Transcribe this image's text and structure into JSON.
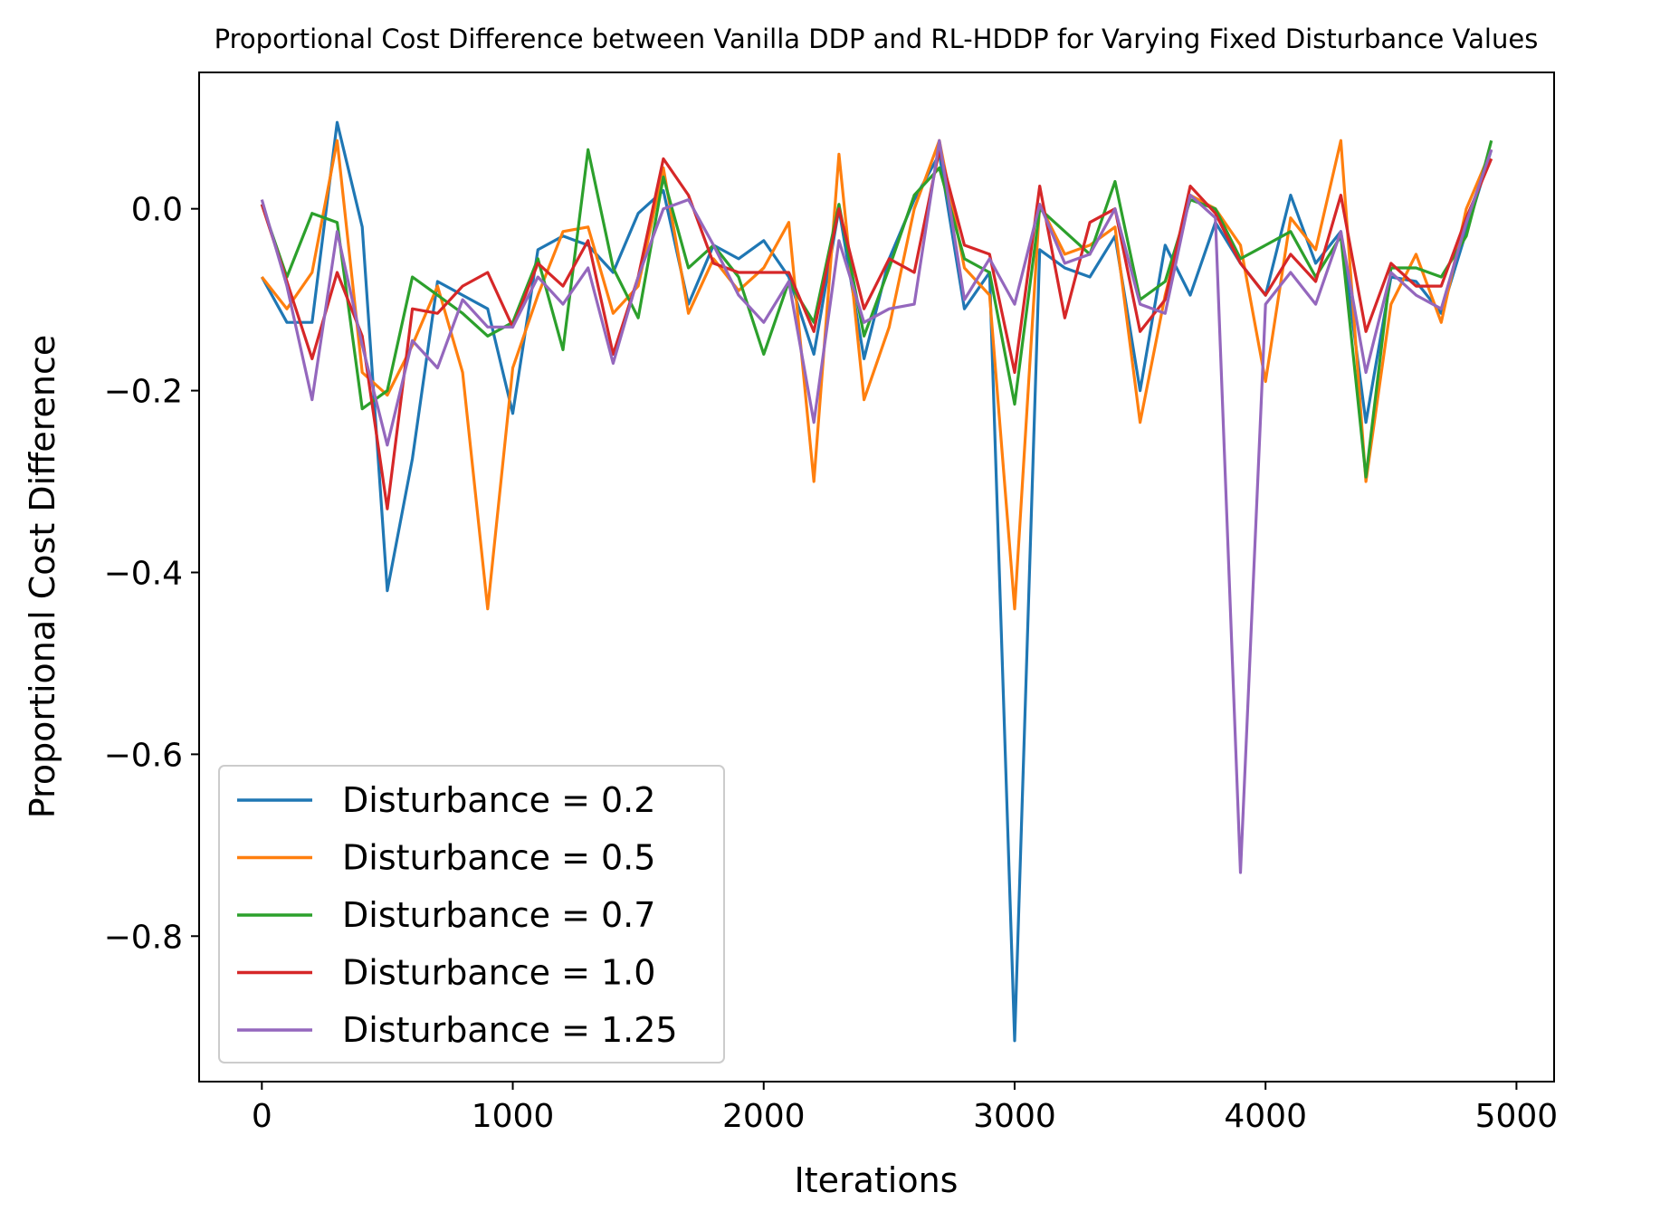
{
  "chart_data": {
    "type": "line",
    "title": "Proportional Cost Difference between Vanilla DDP and RL-HDDP for Varying Fixed Disturbance Values",
    "xlabel": "Iterations",
    "ylabel": "Proportional Cost Difference",
    "xlim": [
      -250,
      5150
    ],
    "ylim": [
      -0.96,
      0.15
    ],
    "xticks": [
      0,
      1000,
      2000,
      3000,
      4000,
      5000
    ],
    "xtick_labels": [
      "0",
      "1000",
      "2000",
      "3000",
      "4000",
      "5000"
    ],
    "yticks": [
      0.0,
      -0.2,
      -0.4,
      -0.6,
      -0.8
    ],
    "ytick_labels": [
      "0.0",
      "−0.2",
      "−0.4",
      "−0.6",
      "−0.8"
    ],
    "grid": false,
    "legend_position": "lower-left",
    "x": [
      0,
      100,
      200,
      300,
      400,
      500,
      600,
      700,
      800,
      900,
      1000,
      1100,
      1200,
      1300,
      1400,
      1500,
      1600,
      1700,
      1800,
      1900,
      2000,
      2100,
      2200,
      2300,
      2400,
      2500,
      2600,
      2700,
      2800,
      2900,
      3000,
      3100,
      3200,
      3300,
      3400,
      3500,
      3600,
      3700,
      3800,
      3900,
      4000,
      4100,
      4200,
      4300,
      4400,
      4500,
      4600,
      4700,
      4800,
      4900
    ],
    "series": [
      {
        "name": "Disturbance = 0.2",
        "color": "#1f77b4",
        "values": [
          -0.075,
          -0.125,
          -0.125,
          0.095,
          -0.02,
          -0.42,
          -0.275,
          -0.08,
          -0.095,
          -0.11,
          -0.225,
          -0.045,
          -0.03,
          -0.04,
          -0.07,
          -0.005,
          0.02,
          -0.105,
          -0.04,
          -0.055,
          -0.035,
          -0.075,
          -0.16,
          0.0,
          -0.165,
          -0.055,
          0.01,
          0.06,
          -0.11,
          -0.07,
          -0.915,
          -0.045,
          -0.065,
          -0.075,
          -0.03,
          -0.2,
          -0.04,
          -0.095,
          -0.015,
          -0.06,
          -0.095,
          0.015,
          -0.06,
          -0.025,
          -0.235,
          -0.075,
          -0.08,
          -0.115,
          -0.025,
          0.065
        ]
      },
      {
        "name": "Disturbance = 0.5",
        "color": "#ff7f0e",
        "values": [
          -0.075,
          -0.11,
          -0.07,
          0.075,
          -0.18,
          -0.205,
          -0.15,
          -0.085,
          -0.18,
          -0.44,
          -0.175,
          -0.095,
          -0.025,
          -0.02,
          -0.115,
          -0.085,
          0.045,
          -0.115,
          -0.055,
          -0.09,
          -0.065,
          -0.015,
          -0.3,
          0.06,
          -0.21,
          -0.13,
          0.0,
          0.075,
          -0.065,
          -0.095,
          -0.44,
          0.005,
          -0.05,
          -0.04,
          -0.02,
          -0.235,
          -0.095,
          0.015,
          0.0,
          -0.04,
          -0.19,
          -0.01,
          -0.045,
          0.075,
          -0.3,
          -0.105,
          -0.05,
          -0.125,
          0.0,
          0.065
        ]
      },
      {
        "name": "Disturbance = 0.7",
        "color": "#2ca02c",
        "values": [
          0.005,
          -0.075,
          -0.005,
          -0.015,
          -0.22,
          -0.2,
          -0.075,
          -0.095,
          -0.115,
          -0.14,
          -0.125,
          -0.055,
          -0.155,
          0.065,
          -0.065,
          -0.12,
          0.035,
          -0.065,
          -0.04,
          -0.075,
          -0.16,
          -0.08,
          -0.125,
          0.005,
          -0.14,
          -0.065,
          0.015,
          0.045,
          -0.055,
          -0.07,
          -0.215,
          0.0,
          -0.025,
          -0.05,
          0.03,
          -0.1,
          -0.08,
          0.01,
          0.0,
          -0.055,
          -0.04,
          -0.025,
          -0.075,
          -0.03,
          -0.295,
          -0.065,
          -0.065,
          -0.075,
          -0.03,
          0.075
        ]
      },
      {
        "name": "Disturbance = 1.0",
        "color": "#d62728",
        "values": [
          0.005,
          -0.08,
          -0.165,
          -0.07,
          -0.14,
          -0.33,
          -0.11,
          -0.115,
          -0.085,
          -0.07,
          -0.13,
          -0.06,
          -0.085,
          -0.035,
          -0.16,
          -0.075,
          0.055,
          0.015,
          -0.06,
          -0.07,
          -0.07,
          -0.07,
          -0.135,
          0.0,
          -0.11,
          -0.055,
          -0.07,
          0.065,
          -0.04,
          -0.05,
          -0.18,
          0.025,
          -0.12,
          -0.015,
          0.0,
          -0.135,
          -0.1,
          0.025,
          -0.005,
          -0.06,
          -0.095,
          -0.05,
          -0.08,
          0.015,
          -0.135,
          -0.06,
          -0.085,
          -0.085,
          -0.01,
          0.055
        ]
      },
      {
        "name": "Disturbance = 1.25",
        "color": "#9467bd",
        "values": [
          0.01,
          -0.085,
          -0.21,
          -0.025,
          -0.15,
          -0.26,
          -0.145,
          -0.175,
          -0.1,
          -0.13,
          -0.13,
          -0.075,
          -0.105,
          -0.065,
          -0.17,
          -0.075,
          0.0,
          0.01,
          -0.04,
          -0.095,
          -0.125,
          -0.08,
          -0.235,
          -0.035,
          -0.125,
          -0.11,
          -0.105,
          0.075,
          -0.1,
          -0.055,
          -0.105,
          0.005,
          -0.06,
          -0.05,
          0.0,
          -0.105,
          -0.115,
          0.015,
          -0.01,
          -0.73,
          -0.105,
          -0.07,
          -0.105,
          -0.025,
          -0.18,
          -0.07,
          -0.095,
          -0.11,
          -0.015,
          0.065
        ]
      }
    ]
  }
}
